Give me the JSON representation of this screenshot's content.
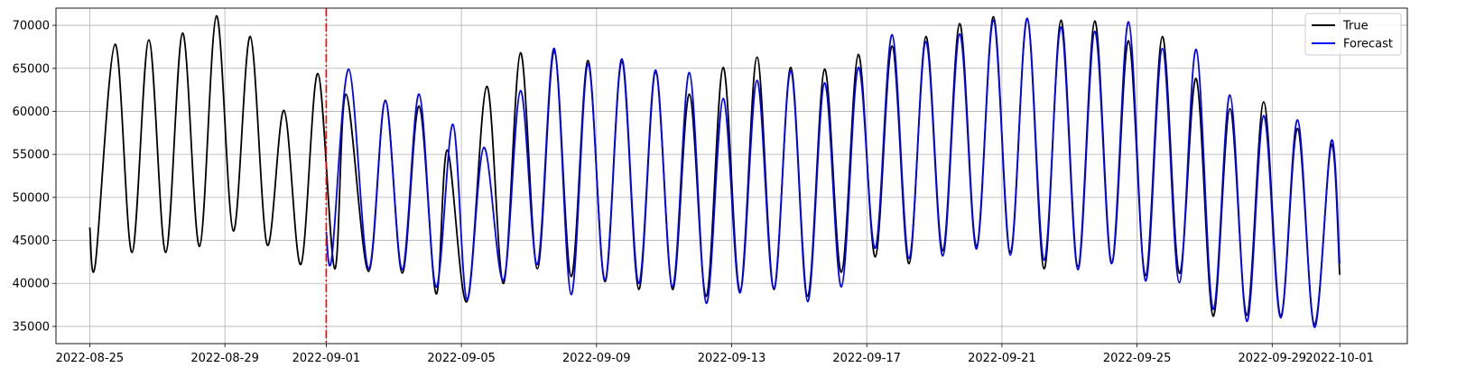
{
  "chart_data": {
    "type": "line",
    "title": "",
    "xlabel": "",
    "ylabel": "",
    "xlim": [
      "2022-08-24T00:00",
      "2022-10-03T00:00"
    ],
    "ylim": [
      33000,
      72000
    ],
    "grid": true,
    "legend_position": "top-right",
    "x_ticks": [
      "2022-08-25",
      "2022-08-29",
      "2022-09-01",
      "2022-09-05",
      "2022-09-09",
      "2022-09-13",
      "2022-09-17",
      "2022-09-21",
      "2022-09-25",
      "2022-09-29",
      "2022-10-01"
    ],
    "y_ticks": [
      35000,
      40000,
      45000,
      50000,
      55000,
      60000,
      65000,
      70000
    ],
    "forecast_start": "2022-09-01",
    "series": [
      {
        "name": "True",
        "color": "#000000",
        "points": [
          {
            "x": "2022-08-25T00:00",
            "y": 46500
          },
          {
            "x": "2022-08-25T04:00",
            "y": 42300
          },
          {
            "x": "2022-08-25T18:00",
            "y": 67800
          },
          {
            "x": "2022-08-26T06:00",
            "y": 43600
          },
          {
            "x": "2022-08-26T18:00",
            "y": 68300
          },
          {
            "x": "2022-08-27T06:00",
            "y": 43600
          },
          {
            "x": "2022-08-27T18:00",
            "y": 69100
          },
          {
            "x": "2022-08-28T06:00",
            "y": 44300
          },
          {
            "x": "2022-08-28T18:00",
            "y": 71100
          },
          {
            "x": "2022-08-29T06:00",
            "y": 46100
          },
          {
            "x": "2022-08-29T18:00",
            "y": 68700
          },
          {
            "x": "2022-08-30T06:00",
            "y": 44500
          },
          {
            "x": "2022-08-30T18:00",
            "y": 60100
          },
          {
            "x": "2022-08-31T06:00",
            "y": 42200
          },
          {
            "x": "2022-08-31T18:00",
            "y": 64400
          },
          {
            "x": "2022-09-01T06:00",
            "y": 41700
          },
          {
            "x": "2022-09-01T14:00",
            "y": 62000
          },
          {
            "x": "2022-09-02T06:00",
            "y": 41400
          },
          {
            "x": "2022-09-02T18:00",
            "y": 61300
          },
          {
            "x": "2022-09-03T06:00",
            "y": 41200
          },
          {
            "x": "2022-09-03T18:00",
            "y": 60600
          },
          {
            "x": "2022-09-04T06:00",
            "y": 38800
          },
          {
            "x": "2022-09-04T14:00",
            "y": 55500
          },
          {
            "x": "2022-09-05T04:00",
            "y": 37900
          },
          {
            "x": "2022-09-05T18:00",
            "y": 62900
          },
          {
            "x": "2022-09-06T06:00",
            "y": 40000
          },
          {
            "x": "2022-09-06T18:00",
            "y": 66800
          },
          {
            "x": "2022-09-07T06:00",
            "y": 41700
          },
          {
            "x": "2022-09-07T18:00",
            "y": 67000
          },
          {
            "x": "2022-09-08T06:00",
            "y": 40800
          },
          {
            "x": "2022-09-08T18:00",
            "y": 65900
          },
          {
            "x": "2022-09-09T06:00",
            "y": 40200
          },
          {
            "x": "2022-09-09T18:00",
            "y": 65800
          },
          {
            "x": "2022-09-10T06:00",
            "y": 39300
          },
          {
            "x": "2022-09-10T18:00",
            "y": 64500
          },
          {
            "x": "2022-09-11T06:00",
            "y": 39300
          },
          {
            "x": "2022-09-11T18:00",
            "y": 62000
          },
          {
            "x": "2022-09-12T06:00",
            "y": 38500
          },
          {
            "x": "2022-09-12T18:00",
            "y": 65100
          },
          {
            "x": "2022-09-13T06:00",
            "y": 39100
          },
          {
            "x": "2022-09-13T18:00",
            "y": 66300
          },
          {
            "x": "2022-09-14T06:00",
            "y": 39300
          },
          {
            "x": "2022-09-14T18:00",
            "y": 65100
          },
          {
            "x": "2022-09-15T06:00",
            "y": 38500
          },
          {
            "x": "2022-09-15T18:00",
            "y": 64900
          },
          {
            "x": "2022-09-16T06:00",
            "y": 41300
          },
          {
            "x": "2022-09-16T18:00",
            "y": 66600
          },
          {
            "x": "2022-09-17T06:00",
            "y": 43100
          },
          {
            "x": "2022-09-17T18:00",
            "y": 67600
          },
          {
            "x": "2022-09-18T06:00",
            "y": 42300
          },
          {
            "x": "2022-09-18T18:00",
            "y": 68700
          },
          {
            "x": "2022-09-19T06:00",
            "y": 43800
          },
          {
            "x": "2022-09-19T18:00",
            "y": 70200
          },
          {
            "x": "2022-09-20T06:00",
            "y": 44300
          },
          {
            "x": "2022-09-20T18:00",
            "y": 71000
          },
          {
            "x": "2022-09-21T06:00",
            "y": 43600
          },
          {
            "x": "2022-09-21T18:00",
            "y": 70800
          },
          {
            "x": "2022-09-22T06:00",
            "y": 41700
          },
          {
            "x": "2022-09-22T18:00",
            "y": 70600
          },
          {
            "x": "2022-09-23T06:00",
            "y": 42000
          },
          {
            "x": "2022-09-23T18:00",
            "y": 70500
          },
          {
            "x": "2022-09-24T06:00",
            "y": 42400
          },
          {
            "x": "2022-09-24T18:00",
            "y": 68200
          },
          {
            "x": "2022-09-25T06:00",
            "y": 40900
          },
          {
            "x": "2022-09-25T18:00",
            "y": 68700
          },
          {
            "x": "2022-09-26T06:00",
            "y": 41200
          },
          {
            "x": "2022-09-26T18:00",
            "y": 63800
          },
          {
            "x": "2022-09-27T06:00",
            "y": 36200
          },
          {
            "x": "2022-09-27T18:00",
            "y": 60300
          },
          {
            "x": "2022-09-28T06:00",
            "y": 36300
          },
          {
            "x": "2022-09-28T18:00",
            "y": 61100
          },
          {
            "x": "2022-09-29T06:00",
            "y": 36200
          },
          {
            "x": "2022-09-29T18:00",
            "y": 58000
          },
          {
            "x": "2022-09-30T06:00",
            "y": 35200
          },
          {
            "x": "2022-09-30T18:00",
            "y": 56100
          },
          {
            "x": "2022-10-01T00:00",
            "y": 41000
          }
        ]
      },
      {
        "name": "Forecast",
        "color": "#0000ff",
        "points": [
          {
            "x": "2022-09-01T00:00",
            "y": 46000
          },
          {
            "x": "2022-09-01T04:00",
            "y": 43000
          },
          {
            "x": "2022-09-01T16:00",
            "y": 64900
          },
          {
            "x": "2022-09-02T06:00",
            "y": 41700
          },
          {
            "x": "2022-09-02T18:00",
            "y": 61200
          },
          {
            "x": "2022-09-03T06:00",
            "y": 41600
          },
          {
            "x": "2022-09-03T18:00",
            "y": 62000
          },
          {
            "x": "2022-09-04T06:00",
            "y": 39600
          },
          {
            "x": "2022-09-04T18:00",
            "y": 58500
          },
          {
            "x": "2022-09-05T04:00",
            "y": 38100
          },
          {
            "x": "2022-09-05T16:00",
            "y": 55800
          },
          {
            "x": "2022-09-06T06:00",
            "y": 40400
          },
          {
            "x": "2022-09-06T18:00",
            "y": 62400
          },
          {
            "x": "2022-09-07T06:00",
            "y": 42200
          },
          {
            "x": "2022-09-07T18:00",
            "y": 67300
          },
          {
            "x": "2022-09-08T06:00",
            "y": 38700
          },
          {
            "x": "2022-09-08T18:00",
            "y": 65500
          },
          {
            "x": "2022-09-09T06:00",
            "y": 40400
          },
          {
            "x": "2022-09-09T18:00",
            "y": 66100
          },
          {
            "x": "2022-09-10T06:00",
            "y": 40000
          },
          {
            "x": "2022-09-10T18:00",
            "y": 64800
          },
          {
            "x": "2022-09-11T06:00",
            "y": 39600
          },
          {
            "x": "2022-09-11T18:00",
            "y": 64500
          },
          {
            "x": "2022-09-12T06:00",
            "y": 37700
          },
          {
            "x": "2022-09-12T18:00",
            "y": 61500
          },
          {
            "x": "2022-09-13T06:00",
            "y": 38900
          },
          {
            "x": "2022-09-13T18:00",
            "y": 63600
          },
          {
            "x": "2022-09-14T06:00",
            "y": 39400
          },
          {
            "x": "2022-09-14T18:00",
            "y": 64700
          },
          {
            "x": "2022-09-15T06:00",
            "y": 37900
          },
          {
            "x": "2022-09-15T18:00",
            "y": 63300
          },
          {
            "x": "2022-09-16T06:00",
            "y": 39600
          },
          {
            "x": "2022-09-16T18:00",
            "y": 65100
          },
          {
            "x": "2022-09-17T06:00",
            "y": 44100
          },
          {
            "x": "2022-09-17T18:00",
            "y": 68900
          },
          {
            "x": "2022-09-18T06:00",
            "y": 42900
          },
          {
            "x": "2022-09-18T18:00",
            "y": 68100
          },
          {
            "x": "2022-09-19T06:00",
            "y": 43200
          },
          {
            "x": "2022-09-19T18:00",
            "y": 69000
          },
          {
            "x": "2022-09-20T06:00",
            "y": 44000
          },
          {
            "x": "2022-09-20T18:00",
            "y": 70600
          },
          {
            "x": "2022-09-21T06:00",
            "y": 43300
          },
          {
            "x": "2022-09-21T18:00",
            "y": 70800
          },
          {
            "x": "2022-09-22T06:00",
            "y": 42700
          },
          {
            "x": "2022-09-22T18:00",
            "y": 69800
          },
          {
            "x": "2022-09-23T06:00",
            "y": 41600
          },
          {
            "x": "2022-09-23T18:00",
            "y": 69300
          },
          {
            "x": "2022-09-24T06:00",
            "y": 42300
          },
          {
            "x": "2022-09-24T18:00",
            "y": 70400
          },
          {
            "x": "2022-09-25T06:00",
            "y": 40300
          },
          {
            "x": "2022-09-25T18:00",
            "y": 67300
          },
          {
            "x": "2022-09-26T06:00",
            "y": 40100
          },
          {
            "x": "2022-09-26T18:00",
            "y": 67200
          },
          {
            "x": "2022-09-27T06:00",
            "y": 37000
          },
          {
            "x": "2022-09-27T18:00",
            "y": 61900
          },
          {
            "x": "2022-09-28T06:00",
            "y": 35600
          },
          {
            "x": "2022-09-28T18:00",
            "y": 59500
          },
          {
            "x": "2022-09-29T06:00",
            "y": 36000
          },
          {
            "x": "2022-09-29T18:00",
            "y": 59000
          },
          {
            "x": "2022-09-30T06:00",
            "y": 34900
          },
          {
            "x": "2022-09-30T18:00",
            "y": 56600
          },
          {
            "x": "2022-10-01T00:00",
            "y": 42300
          }
        ]
      }
    ]
  }
}
